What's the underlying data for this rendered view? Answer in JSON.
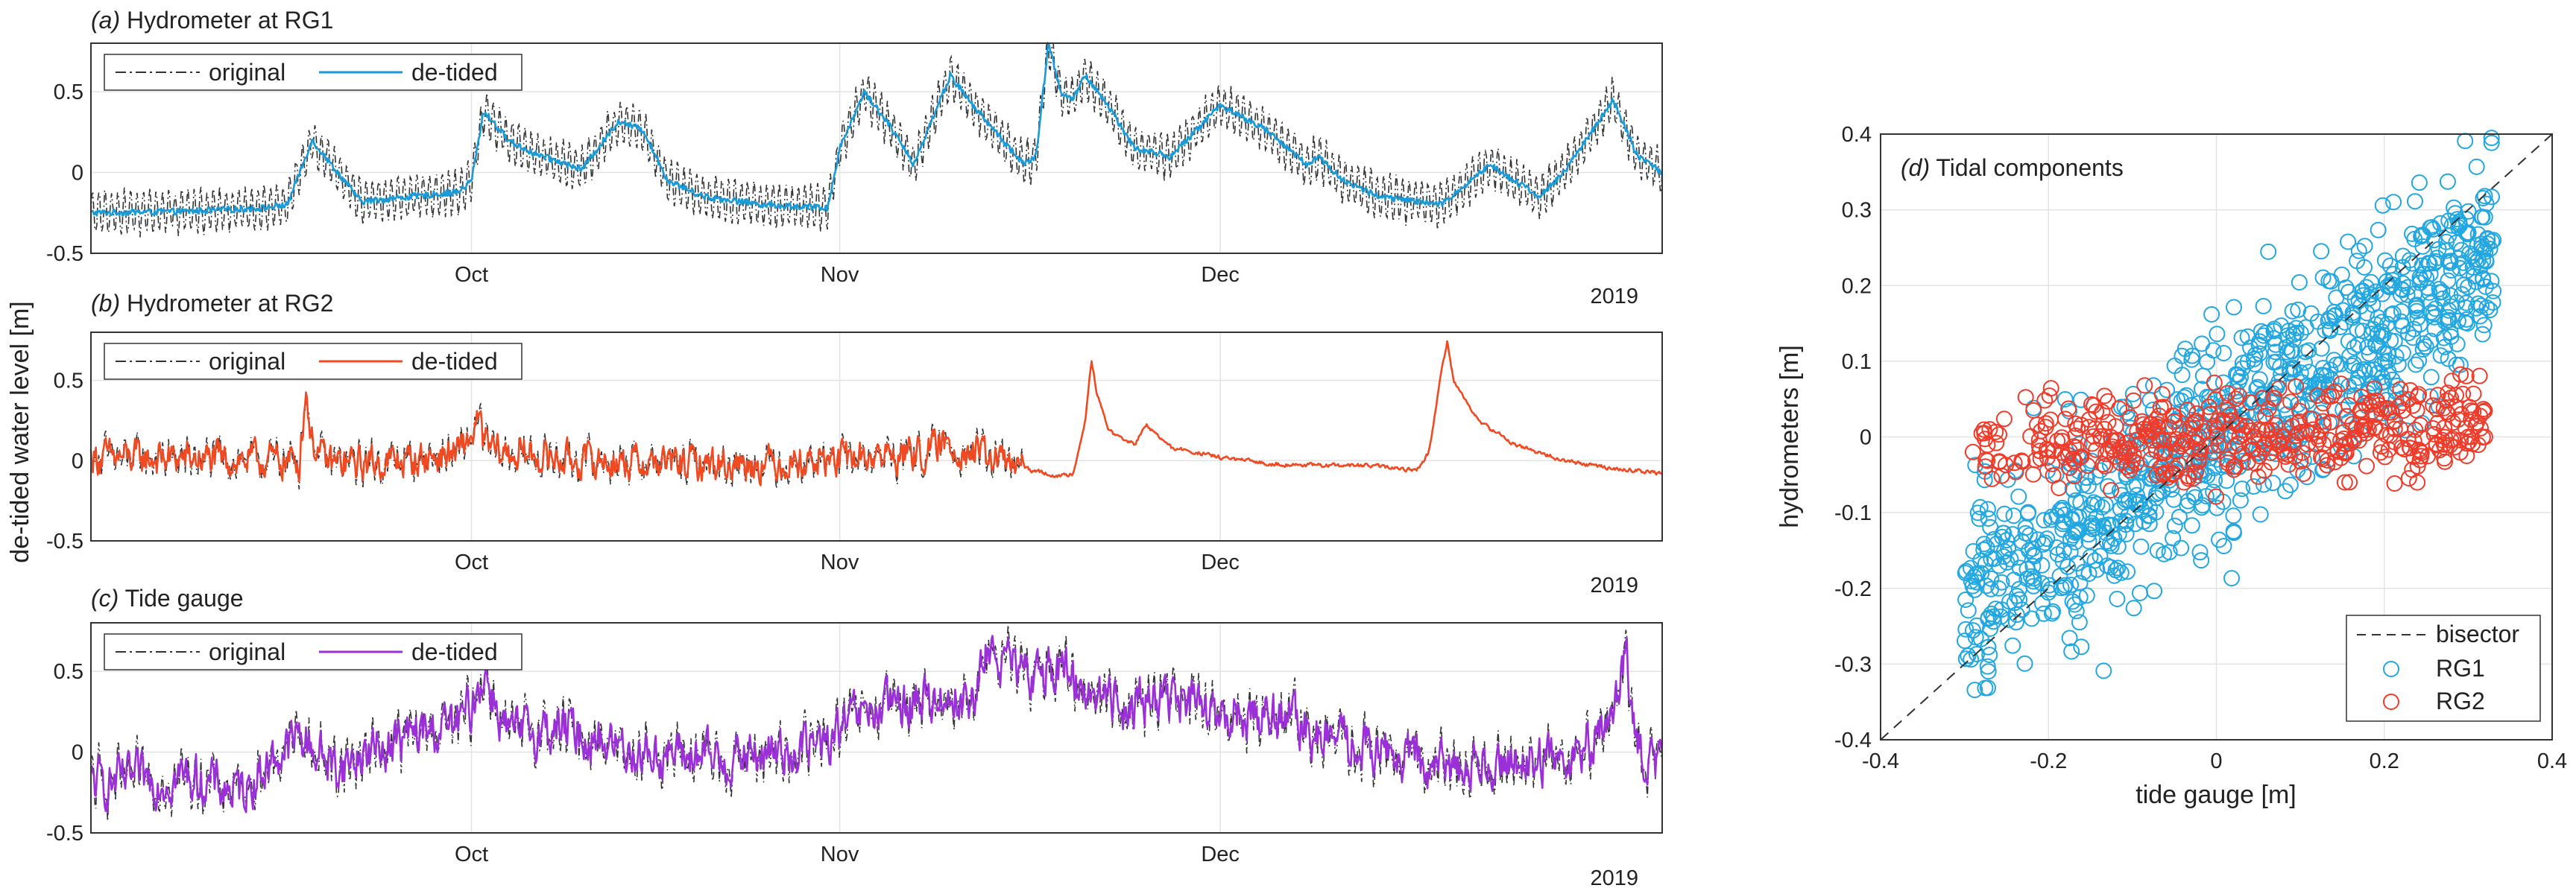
{
  "shared": {
    "ylabel": "de-tided water level [m]",
    "year_label": "2019"
  },
  "chart_data": [
    {
      "type": "line",
      "panel": "a",
      "title_prefix": "(a)",
      "title": "Hydrometer at RG1",
      "xlabel": "",
      "x_ticks": [
        "Oct",
        "Nov",
        "Dec"
      ],
      "x_tick_days": [
        31,
        61,
        92
      ],
      "x_range_days": [
        0,
        128
      ],
      "year_label": "2019",
      "ylim": [
        -0.5,
        0.8
      ],
      "y_ticks": [
        -0.5,
        0,
        0.5
      ],
      "y_tick_labels": [
        "-0.5",
        "0",
        "0.5"
      ],
      "legend": [
        "original",
        "de-tided"
      ],
      "colors": {
        "original": "#333333",
        "detided": "#1a9ad6"
      },
      "tidal_amplitude": 0.13,
      "series": [
        {
          "name": "de-tided",
          "x": [
            0,
            8,
            14,
            16,
            18,
            22,
            26,
            30,
            31,
            32,
            34,
            36,
            40,
            43,
            45,
            47,
            50,
            55,
            60,
            61,
            63,
            65,
            67,
            70,
            72,
            76,
            77,
            78,
            79,
            80,
            81,
            83,
            85,
            88,
            92,
            96,
            99,
            100,
            102,
            105,
            110,
            114,
            118,
            120,
            124,
            126,
            128
          ],
          "values": [
            -0.25,
            -0.24,
            -0.22,
            -0.2,
            0.2,
            -0.18,
            -0.15,
            -0.12,
            -0.05,
            0.38,
            0.2,
            0.12,
            0.02,
            0.32,
            0.26,
            -0.05,
            -0.15,
            -0.2,
            -0.22,
            0.15,
            0.5,
            0.3,
            0.05,
            0.6,
            0.4,
            0.05,
            0.1,
            0.8,
            0.5,
            0.45,
            0.6,
            0.4,
            0.15,
            0.1,
            0.42,
            0.25,
            0.05,
            0.1,
            -0.05,
            -0.15,
            -0.2,
            0.05,
            -0.15,
            0.0,
            0.45,
            0.1,
            0.0
          ]
        }
      ]
    },
    {
      "type": "line",
      "panel": "b",
      "title_prefix": "(b)",
      "title": "Hydrometer at RG2",
      "xlabel": "",
      "x_ticks": [
        "Oct",
        "Nov",
        "Dec"
      ],
      "x_tick_days": [
        31,
        61,
        92
      ],
      "x_range_days": [
        0,
        128
      ],
      "year_label": "2019",
      "ylim": [
        -0.5,
        0.8
      ],
      "y_ticks": [
        -0.5,
        0,
        0.5
      ],
      "y_tick_labels": [
        "-0.5",
        "0",
        "0.5"
      ],
      "legend": [
        "original",
        "de-tided"
      ],
      "colors": {
        "original": "#333333",
        "detided": "#f04a23"
      },
      "noise_amplitude": 0.09,
      "noise_until_day": 76,
      "series": [
        {
          "name": "de-tided",
          "x": [
            0,
            17,
            17.5,
            18,
            19,
            20,
            26,
            30,
            31,
            31.5,
            32,
            33,
            40,
            50,
            60,
            68,
            70,
            76,
            79,
            80,
            81,
            81.5,
            82,
            83,
            85,
            86,
            87,
            88,
            92,
            96,
            100,
            104,
            108,
            109,
            110,
            110.5,
            111,
            113,
            116,
            120,
            124,
            128
          ],
          "values": [
            0.02,
            0.0,
            0.45,
            0.12,
            0.0,
            -0.02,
            0.0,
            0.05,
            0.15,
            0.25,
            0.12,
            0.05,
            0.0,
            -0.02,
            0.0,
            0.05,
            0.1,
            -0.05,
            -0.1,
            -0.08,
            0.25,
            0.62,
            0.4,
            0.18,
            0.1,
            0.22,
            0.15,
            0.08,
            0.02,
            -0.02,
            -0.03,
            -0.03,
            -0.06,
            0.05,
            0.55,
            0.75,
            0.5,
            0.25,
            0.1,
            0.0,
            -0.05,
            -0.08
          ]
        }
      ]
    },
    {
      "type": "line",
      "panel": "c",
      "title_prefix": "(c)",
      "title": "Tide gauge",
      "xlabel": "",
      "x_ticks": [
        "Oct",
        "Nov",
        "Dec"
      ],
      "x_tick_days": [
        31,
        61,
        92
      ],
      "x_range_days": [
        0,
        128
      ],
      "year_label": "2019",
      "ylim": [
        -0.5,
        0.8
      ],
      "y_ticks": [
        -0.5,
        0,
        0.5
      ],
      "y_tick_labels": [
        "-0.5",
        "0",
        "0.5"
      ],
      "legend": [
        "original",
        "de-tided"
      ],
      "colors": {
        "original": "#333333",
        "detided": "#9b30d9"
      },
      "noise_amplitude": 0.12,
      "series": [
        {
          "name": "de-tided",
          "x": [
            0,
            8,
            12,
            17,
            20,
            24,
            30,
            31,
            32,
            34,
            38,
            45,
            52,
            60,
            62,
            66,
            70,
            72,
            73,
            76,
            78,
            81,
            84,
            88,
            92,
            96,
            100,
            105,
            110,
            114,
            120,
            124,
            125,
            126,
            128
          ],
          "values": [
            -0.2,
            -0.15,
            -0.25,
            0.1,
            -0.1,
            0.05,
            0.18,
            0.28,
            0.5,
            0.1,
            0.15,
            0.0,
            -0.05,
            0.05,
            0.2,
            0.3,
            0.35,
            0.3,
            0.65,
            0.45,
            0.55,
            0.4,
            0.3,
            0.35,
            0.2,
            0.25,
            0.1,
            0.0,
            -0.1,
            -0.05,
            -0.05,
            0.2,
            0.6,
            0.0,
            -0.1
          ]
        }
      ]
    },
    {
      "type": "scatter",
      "panel": "d",
      "title_prefix": "(d)",
      "title": "Tidal components",
      "xlabel": "tide gauge [m]",
      "ylabel": "hydrometers [m]",
      "xlim": [
        -0.4,
        0.4
      ],
      "ylim": [
        -0.4,
        0.4
      ],
      "x_ticks": [
        -0.4,
        -0.2,
        0,
        0.2,
        0.4
      ],
      "x_tick_labels": [
        "-0.4",
        "-0.2",
        "0",
        "0.2",
        "0.4"
      ],
      "y_ticks": [
        -0.4,
        -0.3,
        -0.2,
        -0.1,
        0,
        0.1,
        0.2,
        0.3,
        0.4
      ],
      "y_tick_labels": [
        "-0.4",
        "-0.3",
        "-0.2",
        "-0.1",
        "0",
        "0.1",
        "0.2",
        "0.3",
        "0.4"
      ],
      "grid": true,
      "legend": [
        "bisector",
        "RG1",
        "RG2"
      ],
      "legend_position": "bottom-right",
      "colors": {
        "bisector": "#333333",
        "RG1": "#22a7e0",
        "RG2": "#ee3b2a"
      },
      "series": [
        {
          "name": "RG1",
          "x_range": [
            -0.3,
            0.33
          ],
          "slope": 0.72,
          "spread": 0.07,
          "count": 900,
          "outliers": [
            [
              -0.28,
              -0.18
            ],
            [
              0.3,
              0.27
            ],
            [
              0.33,
              0.26
            ],
            [
              0.25,
              0.21
            ],
            [
              -0.22,
              -0.24
            ],
            [
              0.28,
              0.22
            ]
          ]
        },
        {
          "name": "RG2",
          "x_range": [
            -0.28,
            0.32
          ],
          "slope": 0.05,
          "spread": 0.03,
          "count": 450,
          "outliers": [
            [
              -0.29,
              -0.02
            ],
            [
              0.3,
              0.0
            ],
            [
              0.32,
              0.0
            ],
            [
              -0.27,
              0.01
            ]
          ]
        }
      ]
    }
  ]
}
